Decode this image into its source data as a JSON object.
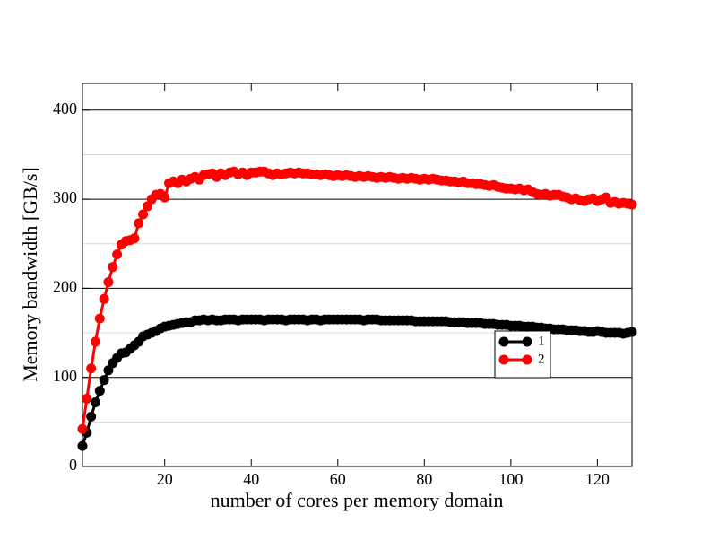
{
  "chart_data": {
    "type": "line",
    "x_label": "number of cores per memory domain",
    "y_label": "Memory bandwidth [GB/s]",
    "x": [
      1,
      2,
      3,
      4,
      5,
      6,
      7,
      8,
      9,
      10,
      11,
      12,
      13,
      14,
      15,
      16,
      17,
      18,
      19,
      20,
      21,
      22,
      23,
      24,
      25,
      26,
      27,
      28,
      29,
      30,
      31,
      32,
      33,
      34,
      35,
      36,
      37,
      38,
      39,
      40,
      41,
      42,
      43,
      44,
      45,
      46,
      47,
      48,
      49,
      50,
      51,
      52,
      53,
      54,
      55,
      56,
      57,
      58,
      59,
      60,
      61,
      62,
      63,
      64,
      65,
      66,
      67,
      68,
      69,
      70,
      71,
      72,
      73,
      74,
      75,
      76,
      77,
      78,
      79,
      80,
      81,
      82,
      83,
      84,
      85,
      86,
      87,
      88,
      89,
      90,
      91,
      92,
      93,
      94,
      95,
      96,
      97,
      98,
      99,
      100,
      101,
      102,
      103,
      104,
      105,
      106,
      107,
      108,
      109,
      110,
      111,
      112,
      113,
      114,
      115,
      116,
      117,
      118,
      119,
      120,
      121,
      122,
      123,
      124,
      125,
      126,
      127,
      128
    ],
    "series": [
      {
        "name": "1",
        "color": "#000000",
        "values": [
          23,
          38,
          56,
          72,
          85,
          97,
          108,
          116,
          122,
          127,
          128,
          132,
          136,
          140,
          146,
          148,
          150,
          152,
          155,
          157,
          158,
          159,
          160,
          161,
          162,
          162,
          164,
          164,
          165,
          164,
          165,
          164,
          164,
          165,
          165,
          165,
          164,
          165,
          165,
          165,
          165,
          165,
          164,
          165,
          165,
          165,
          165,
          164,
          165,
          165,
          165,
          165,
          164,
          165,
          165,
          164,
          165,
          165,
          165,
          165,
          165,
          165,
          165,
          165,
          165,
          164,
          165,
          165,
          165,
          164,
          164,
          164,
          164,
          164,
          164,
          164,
          164,
          163,
          163,
          163,
          163,
          163,
          163,
          163,
          163,
          162,
          162,
          162,
          162,
          161,
          161,
          161,
          161,
          160,
          160,
          160,
          159,
          159,
          159,
          158,
          158,
          158,
          157,
          157,
          157,
          156,
          156,
          155,
          155,
          154,
          154,
          154,
          153,
          153,
          153,
          152,
          152,
          151,
          151,
          152,
          151,
          150,
          150,
          150,
          150,
          149,
          150,
          151
        ]
      },
      {
        "name": "2",
        "color": "#ff0000",
        "values": [
          42,
          76,
          110,
          140,
          166,
          188,
          207,
          224,
          238,
          249,
          253,
          254,
          256,
          273,
          283,
          292,
          300,
          305,
          306,
          302,
          318,
          320,
          318,
          322,
          320,
          323,
          325,
          322,
          327,
          328,
          329,
          325,
          329,
          327,
          330,
          331,
          328,
          330,
          327,
          330,
          330,
          331,
          331,
          329,
          327,
          329,
          328,
          329,
          330,
          329,
          330,
          329,
          329,
          328,
          328,
          327,
          328,
          327,
          326,
          327,
          326,
          327,
          326,
          325,
          326,
          325,
          326,
          325,
          324,
          325,
          324,
          325,
          324,
          323,
          324,
          323,
          324,
          323,
          322,
          323,
          322,
          323,
          322,
          321,
          321,
          320,
          320,
          319,
          320,
          318,
          318,
          317,
          317,
          316,
          315,
          316,
          314,
          313,
          312,
          312,
          311,
          312,
          310,
          311,
          308,
          306,
          305,
          306,
          304,
          305,
          305,
          303,
          302,
          300,
          301,
          299,
          298,
          300,
          301,
          298,
          300,
          302,
          296,
          297,
          295,
          296,
          295,
          294
        ]
      }
    ],
    "xlim": [
      1,
      128
    ],
    "ylim": [
      0,
      430
    ],
    "xticks": [
      20,
      40,
      60,
      80,
      100,
      120
    ],
    "yticks": [
      0,
      100,
      200,
      300,
      400
    ],
    "minor_yticks": [
      50,
      150,
      250,
      350
    ],
    "grid": true,
    "legend_position": "right"
  }
}
